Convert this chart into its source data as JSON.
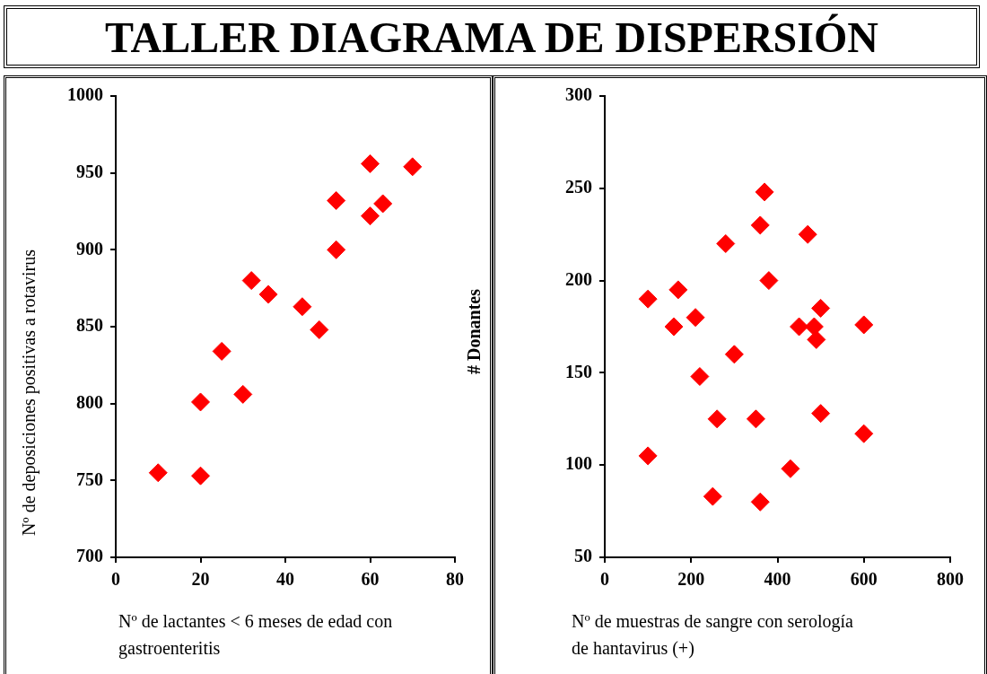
{
  "chart_data": [
    {
      "type": "scatter",
      "title": "TALLER DIAGRAMA DE DISPERSIÓN",
      "xlabel": "Nº de lactantes < 6 meses de edad con gastroenteritis",
      "ylabel": "Nº de deposiciones positivas a rotavirus",
      "marker": "diamond",
      "legend": false,
      "series": [
        {
          "color": "#ff0000",
          "x": [
            10,
            20,
            20,
            25,
            30,
            32,
            36,
            44,
            48,
            52,
            52,
            60,
            60,
            63,
            70
          ],
          "values": [
            755,
            753,
            801,
            834,
            806,
            880,
            871,
            863,
            848,
            900,
            932,
            922,
            956,
            930,
            954
          ]
        }
      ],
      "xlim": [
        0,
        80
      ],
      "xticks": [
        0,
        20,
        40,
        60,
        80
      ],
      "ylim": [
        700,
        1000
      ],
      "yticks": [
        700,
        750,
        800,
        850,
        900,
        950,
        1000
      ]
    },
    {
      "type": "scatter",
      "xlabel": "Nº de muestras de sangre con serología de hantavirus (+)",
      "ylabel": "# Donantes",
      "marker": "diamond",
      "legend": false,
      "series": [
        {
          "color": "#ff0000",
          "x": [
            100,
            100,
            170,
            160,
            210,
            220,
            250,
            260,
            280,
            300,
            350,
            360,
            360,
            370,
            380,
            430,
            450,
            470,
            485,
            490,
            500,
            500,
            600,
            600
          ],
          "values": [
            190,
            105,
            195,
            175,
            180,
            148,
            83,
            125,
            220,
            160,
            125,
            230,
            80,
            248,
            200,
            98,
            175,
            225,
            175,
            168,
            185,
            128,
            176,
            117
          ]
        }
      ],
      "xlim": [
        0,
        800
      ],
      "xticks": [
        0,
        200,
        400,
        600,
        800
      ],
      "ylim": [
        50,
        300
      ],
      "yticks": [
        50,
        100,
        150,
        200,
        250,
        300
      ]
    }
  ]
}
